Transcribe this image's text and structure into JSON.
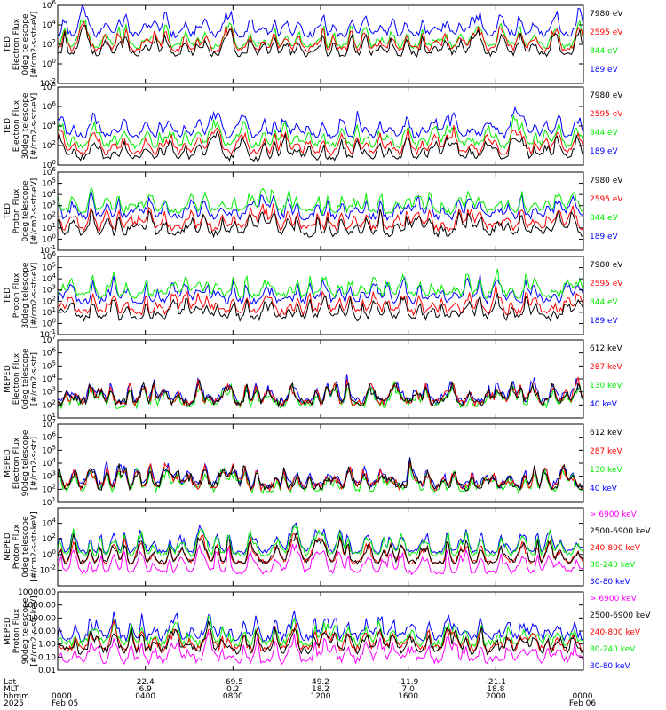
{
  "colors": {
    "blue": "#0000ff",
    "red": "#ff0000",
    "green": "#00ee00",
    "black": "#000000",
    "magenta": "#ff00ff"
  },
  "chart_data": [
    {
      "type": "line",
      "panel": 1,
      "ylabel": [
        "TED",
        "Electron Flux",
        "0deg telescope",
        "[#/cm2-s-str-eV]"
      ],
      "yscale": "log",
      "ylim": [
        0.01,
        1000000
      ],
      "ytick_labels": [
        "10^-2",
        "10^0",
        "10^2",
        "10^4",
        "10^6"
      ],
      "series": [
        {
          "name": "7980 eV",
          "color": "black",
          "baseline": 10
        },
        {
          "name": "2595 eV",
          "color": "red",
          "baseline": 30
        },
        {
          "name": "844 eV",
          "color": "green",
          "baseline": 60
        },
        {
          "name": "189 eV",
          "color": "blue",
          "baseline": 1000
        }
      ]
    },
    {
      "type": "line",
      "panel": 2,
      "ylabel": [
        "TED",
        "Electron Flux",
        "30deg telescope",
        "[#/cm2-s-str-eV]"
      ],
      "yscale": "log",
      "ylim": [
        1,
        100000000
      ],
      "ytick_labels": [
        "10^0",
        "10^2",
        "10^4",
        "10^6",
        "10^8"
      ],
      "series": [
        {
          "name": "7980 eV",
          "color": "black",
          "baseline": 5
        },
        {
          "name": "2595 eV",
          "color": "red",
          "baseline": 20
        },
        {
          "name": "844 eV",
          "color": "green",
          "baseline": 100
        },
        {
          "name": "189 eV",
          "color": "blue",
          "baseline": 1000
        }
      ]
    },
    {
      "type": "line",
      "panel": 3,
      "ylabel": [
        "TED",
        "Proton Flux",
        "0deg telescope",
        "[#/cm2-s-str-eV]"
      ],
      "yscale": "log",
      "ylim": [
        0.1,
        1000000
      ],
      "ytick_labels": [
        "10^-1",
        "10^0",
        "10^1",
        "10^2",
        "10^3",
        "10^4",
        "10^5",
        "10^6"
      ],
      "series": [
        {
          "name": "7980 eV",
          "color": "black",
          "baseline": 3
        },
        {
          "name": "2595 eV",
          "color": "red",
          "baseline": 10
        },
        {
          "name": "844 eV",
          "color": "green",
          "baseline": 300
        },
        {
          "name": "189 eV",
          "color": "blue",
          "baseline": 100
        }
      ]
    },
    {
      "type": "line",
      "panel": 4,
      "ylabel": [
        "TED",
        "Proton Flux",
        "30deg telescope",
        "[#/cm2-s-str-eV]"
      ],
      "yscale": "log",
      "ylim": [
        0.1,
        1000000
      ],
      "ytick_labels": [
        "10^-1",
        "10^0",
        "10^1",
        "10^2",
        "10^3",
        "10^4",
        "10^5",
        "10^6"
      ],
      "series": [
        {
          "name": "7980 eV",
          "color": "black",
          "baseline": 3
        },
        {
          "name": "2595 eV",
          "color": "red",
          "baseline": 10
        },
        {
          "name": "844 eV",
          "color": "green",
          "baseline": 300
        },
        {
          "name": "189 eV",
          "color": "blue",
          "baseline": 100
        }
      ]
    },
    {
      "type": "line",
      "panel": 5,
      "ylabel": [
        "MEPED",
        "Electron Flux",
        "0deg telescope",
        "[#/cm2-s-str]"
      ],
      "yscale": "log",
      "ylim": [
        10,
        10000000
      ],
      "ytick_labels": [
        "10^1",
        "10^2",
        "10^3",
        "10^4",
        "10^5",
        "10^6",
        "10^7"
      ],
      "series": [
        {
          "name": "612 keV",
          "color": "black",
          "baseline": 150
        },
        {
          "name": "287 keV",
          "color": "red",
          "baseline": 150
        },
        {
          "name": "130 keV",
          "color": "green",
          "baseline": 100
        },
        {
          "name": "40 keV",
          "color": "blue",
          "baseline": 200
        }
      ]
    },
    {
      "type": "line",
      "panel": 6,
      "ylabel": [
        "MEPED",
        "Electron Flux",
        "90deg telescope",
        "[#/cm2-s-str]"
      ],
      "yscale": "log",
      "ylim": [
        10,
        10000000
      ],
      "ytick_labels": [
        "10^1",
        "10^2",
        "10^3",
        "10^4",
        "10^5",
        "10^6",
        "10^7"
      ],
      "series": [
        {
          "name": "612 keV",
          "color": "black",
          "baseline": 150
        },
        {
          "name": "287 keV",
          "color": "red",
          "baseline": 150
        },
        {
          "name": "130 keV",
          "color": "green",
          "baseline": 100
        },
        {
          "name": "40 keV",
          "color": "blue",
          "baseline": 200
        }
      ]
    },
    {
      "type": "line",
      "panel": 7,
      "ylabel": [
        "MEPED",
        "Proton Flux",
        "0deg telescope",
        "[#/cm2-s-str-keV]"
      ],
      "yscale": "log",
      "ylim": [
        0.0001,
        1000000
      ],
      "ytick_labels": [
        "10^-2",
        "10^0",
        "10^2",
        "10^4"
      ],
      "series": [
        {
          "name": "> 6900 keV",
          "color": "magenta",
          "baseline": 0.005
        },
        {
          "name": "2500-6900 keV",
          "color": "black",
          "baseline": 0.1
        },
        {
          "name": "240-800 keV",
          "color": "red",
          "baseline": 0.1
        },
        {
          "name": "80-240 keV",
          "color": "green",
          "baseline": 1
        },
        {
          "name": "30-80 keV",
          "color": "blue",
          "baseline": 2
        }
      ]
    },
    {
      "type": "line",
      "panel": 8,
      "ylabel": [
        "MEPED",
        "Proton Flux",
        "90deg telescope",
        "[#/cm2-s-str-keV]"
      ],
      "yscale": "log",
      "ylim": [
        0.01,
        10000
      ],
      "ytick_labels": [
        "0.01",
        "0.10",
        "1.00",
        "10.00",
        "100.00",
        "1000.00",
        "10000.00"
      ],
      "series": [
        {
          "name": "> 6900 keV",
          "color": "magenta",
          "baseline": 0.05
        },
        {
          "name": "2500-6900 keV",
          "color": "black",
          "baseline": 0.3
        },
        {
          "name": "240-800 keV",
          "color": "red",
          "baseline": 0.4
        },
        {
          "name": "80-240 keV",
          "color": "green",
          "baseline": 1
        },
        {
          "name": "30-80 keV",
          "color": "blue",
          "baseline": 3
        }
      ]
    }
  ],
  "xaxis": {
    "row_labels": [
      "Lat",
      "MLT",
      "hhmm",
      "2025"
    ],
    "ticks": [
      {
        "lat": "",
        "mlt": "",
        "hhmm": "0000",
        "date": "Feb 05"
      },
      {
        "lat": "22.4",
        "mlt": "6.9",
        "hhmm": "0400",
        "date": ""
      },
      {
        "lat": "-69.5",
        "mlt": "0.2",
        "hhmm": "0800",
        "date": ""
      },
      {
        "lat": "49.2",
        "mlt": "18.2",
        "hhmm": "1200",
        "date": ""
      },
      {
        "lat": "-11.9",
        "mlt": "7.0",
        "hhmm": "1600",
        "date": ""
      },
      {
        "lat": "-21.1",
        "mlt": "18.8",
        "hhmm": "2000",
        "date": ""
      },
      {
        "lat": "",
        "mlt": "",
        "hhmm": "0000",
        "date": "Feb 06"
      }
    ]
  }
}
